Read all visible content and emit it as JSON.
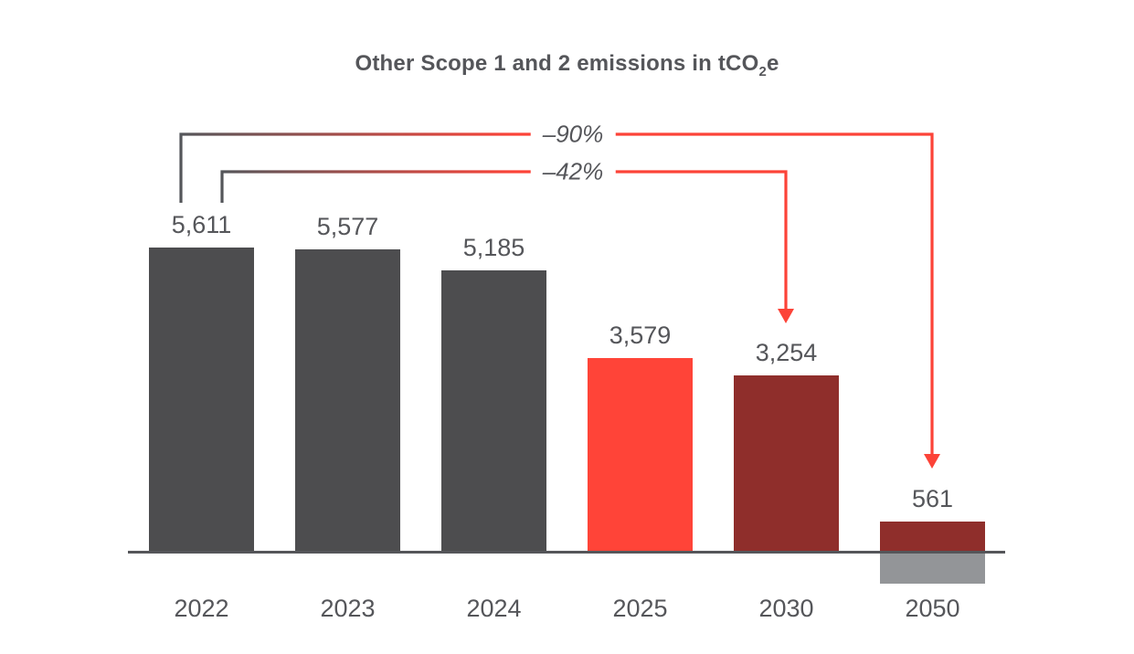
{
  "title": {
    "prefix": "Other Scope 1 and 2 emissions in tCO",
    "sub": "2",
    "suffix": "e"
  },
  "colors": {
    "dark_gray": "#4d4d4f",
    "bright_red": "#ff4438",
    "maroon": "#8f2e2b",
    "gray": "#939598",
    "text": "#55565a",
    "axis": "#55565a",
    "annotation_gray": "#54565a",
    "annotation_red": "#fc4338"
  },
  "chart_data": {
    "type": "bar",
    "title": "Other Scope 1 and 2 emissions in tCO2e",
    "unit": "tCO2e",
    "grid": false,
    "legend": false,
    "baseline": 0,
    "categories": [
      "2022",
      "2023",
      "2024",
      "2025",
      "2030",
      "2050"
    ],
    "bars": [
      {
        "year": "2022",
        "value": 5611,
        "label": "5,611",
        "color": "dark_gray"
      },
      {
        "year": "2023",
        "value": 5577,
        "label": "5,577",
        "color": "dark_gray"
      },
      {
        "year": "2024",
        "value": 5185,
        "label": "5,185",
        "color": "dark_gray"
      },
      {
        "year": "2025",
        "value": 3579,
        "label": "3,579",
        "color": "bright_red"
      },
      {
        "year": "2030",
        "value": 3254,
        "label": "3,254",
        "color": "maroon"
      },
      {
        "year": "2050",
        "value": 561,
        "label": "561",
        "color": "maroon",
        "below_axis_value_estimate": -561,
        "below_axis_color": "gray"
      }
    ],
    "annotations": [
      {
        "label": "–90%",
        "from_year": "2022",
        "to_year": "2050"
      },
      {
        "label": "–42%",
        "from_year": "2022",
        "to_year": "2030"
      }
    ]
  }
}
